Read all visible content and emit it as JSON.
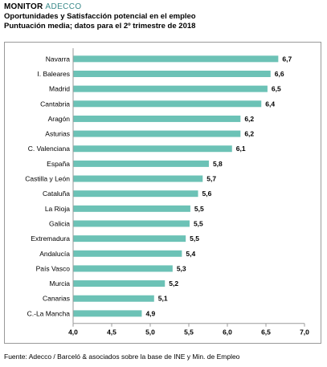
{
  "header": {
    "brand_main": "MONITOR",
    "brand_accent": "ADECCO",
    "title": "Oportunidades y Satisfacción potencial en el empleo",
    "subtitle": "Puntuación media; datos para el 2º trimestre de 2018"
  },
  "source": "Fuente: Adecco / Barceló & asociados sobre la base de INE y Min. de Empleo",
  "colors": {
    "bar": "#6cc2b6",
    "axis": "#9a9a9a",
    "frame": "#9a9a9a"
  },
  "chart_data": {
    "type": "bar",
    "orientation": "horizontal",
    "title": "",
    "xlabel": "",
    "ylabel": "",
    "xlim": [
      4.0,
      7.0
    ],
    "ticks": [
      "4,0",
      "4,5",
      "5,0",
      "5,5",
      "6,0",
      "6,5",
      "7,0"
    ],
    "tick_values": [
      4.0,
      4.5,
      5.0,
      5.5,
      6.0,
      6.5,
      7.0
    ],
    "grid": false,
    "categories": [
      "Navarra",
      "I. Baleares",
      "Madrid",
      "Cantabria",
      "Aragón",
      "Asturias",
      "C. Valenciana",
      "España",
      "Castilla y León",
      "Cataluña",
      "La Rioja",
      "Galicia",
      "Extremadura",
      "Andalucía",
      "País Vasco",
      "Murcia",
      "Canarias",
      "C.-La Mancha"
    ],
    "values": [
      6.66,
      6.56,
      6.52,
      6.44,
      6.17,
      6.17,
      6.06,
      5.76,
      5.68,
      5.62,
      5.52,
      5.51,
      5.46,
      5.41,
      5.29,
      5.19,
      5.05,
      4.89
    ],
    "value_labels": [
      "6,7",
      "6,6",
      "6,5",
      "6,4",
      "6,2",
      "6,2",
      "6,1",
      "5,8",
      "5,7",
      "5,6",
      "5,5",
      "5,5",
      "5,5",
      "5,4",
      "5,3",
      "5,2",
      "5,1",
      "4,9"
    ]
  }
}
